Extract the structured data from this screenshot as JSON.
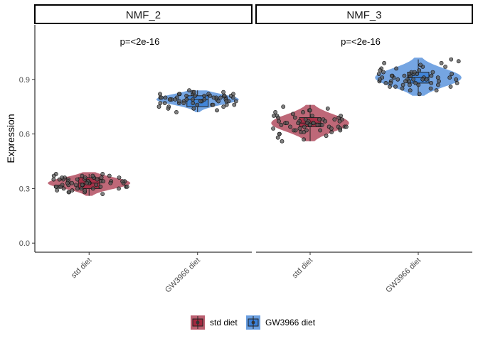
{
  "chart_data": {
    "type": "violin",
    "ylabel": "Expression",
    "ylim": [
      -0.05,
      1.2
    ],
    "yticks": [
      0.0,
      0.3,
      0.6,
      0.9
    ],
    "ytick_labels": [
      "0.0",
      "0.3",
      "0.6",
      "0.9"
    ],
    "categories": [
      "std diet",
      "GW3966 diet"
    ],
    "legend": {
      "position": "bottom",
      "entries": [
        "std diet",
        "GW3966 diet"
      ]
    },
    "colors": {
      "std diet": "#a3283f",
      "GW3966 diet": "#3a7fd6"
    },
    "facets": [
      {
        "name": "NMF_2",
        "pvalue": "p=<2e-16",
        "groups": [
          {
            "name": "std diet",
            "median": 0.33,
            "q1": 0.3,
            "q3": 0.36,
            "min": 0.26,
            "max": 0.38,
            "vmin": 0.26,
            "vmax": 0.39,
            "vwidth": 0.38,
            "points": [
              0.34,
              0.36,
              0.31,
              0.28,
              0.35,
              0.33,
              0.38,
              0.3,
              0.32,
              0.37,
              0.29,
              0.34,
              0.36,
              0.31,
              0.33,
              0.35,
              0.27,
              0.32,
              0.36,
              0.34,
              0.3,
              0.37,
              0.33,
              0.31,
              0.35,
              0.28,
              0.34,
              0.36,
              0.32,
              0.3,
              0.38,
              0.33,
              0.35,
              0.31,
              0.29,
              0.34,
              0.37,
              0.32,
              0.36,
              0.33,
              0.3,
              0.35,
              0.31,
              0.34,
              0.28,
              0.36,
              0.33,
              0.32,
              0.35,
              0.3,
              0.37,
              0.34,
              0.31,
              0.33,
              0.36,
              0.29,
              0.35,
              0.32,
              0.34,
              0.31
            ]
          },
          {
            "name": "GW3966 diet",
            "median": 0.79,
            "q1": 0.75,
            "q3": 0.81,
            "min": 0.72,
            "max": 0.84,
            "vmin": 0.72,
            "vmax": 0.84,
            "vwidth": 0.38,
            "points": [
              0.8,
              0.78,
              0.82,
              0.76,
              0.79,
              0.81,
              0.74,
              0.83,
              0.77,
              0.8,
              0.79,
              0.75,
              0.82,
              0.78,
              0.8,
              0.76,
              0.81,
              0.79,
              0.73,
              0.82,
              0.78,
              0.8,
              0.77,
              0.81,
              0.79,
              0.84,
              0.76,
              0.8,
              0.78,
              0.82,
              0.75,
              0.79,
              0.81,
              0.77,
              0.8,
              0.78,
              0.83,
              0.76,
              0.79,
              0.81,
              0.74,
              0.8,
              0.78,
              0.82,
              0.77,
              0.79,
              0.8,
              0.76,
              0.81,
              0.78,
              0.72,
              0.83,
              0.79,
              0.8,
              0.77,
              0.82,
              0.78,
              0.75,
              0.81,
              0.79
            ]
          }
        ]
      },
      {
        "name": "NMF_3",
        "pvalue": "p=<2e-16",
        "groups": [
          {
            "name": "std diet",
            "median": 0.66,
            "q1": 0.64,
            "q3": 0.69,
            "min": 0.56,
            "max": 0.76,
            "vmin": 0.56,
            "vmax": 0.76,
            "vwidth": 0.36,
            "points": [
              0.65,
              0.7,
              0.62,
              0.73,
              0.58,
              0.67,
              0.64,
              0.69,
              0.61,
              0.75,
              0.66,
              0.63,
              0.68,
              0.6,
              0.72,
              0.65,
              0.67,
              0.57,
              0.7,
              0.64,
              0.62,
              0.74,
              0.66,
              0.68,
              0.59,
              0.65,
              0.71,
              0.63,
              0.67,
              0.64,
              0.6,
              0.69,
              0.66,
              0.62,
              0.72,
              0.65,
              0.68,
              0.61,
              0.66,
              0.63,
              0.7,
              0.64,
              0.56,
              0.67,
              0.65,
              0.73,
              0.62,
              0.68,
              0.66,
              0.64,
              0.69,
              0.61,
              0.65,
              0.67,
              0.63,
              0.7,
              0.66,
              0.64,
              0.62,
              0.68
            ]
          },
          {
            "name": "GW3966 diet",
            "median": 0.91,
            "q1": 0.88,
            "q3": 0.94,
            "min": 0.81,
            "max": 1.01,
            "vmin": 0.81,
            "vmax": 1.02,
            "vwidth": 0.4,
            "points": [
              0.9,
              0.94,
              0.88,
              0.97,
              0.85,
              0.92,
              0.89,
              0.99,
              0.87,
              0.93,
              0.91,
              0.84,
              0.96,
              0.9,
              0.88,
              1.0,
              0.92,
              0.86,
              0.94,
              0.89,
              0.91,
              0.98,
              0.87,
              0.93,
              0.9,
              0.82,
              0.95,
              0.89,
              0.92,
              0.88,
              0.96,
              0.91,
              0.85,
              0.93,
              0.9,
              0.87,
              0.97,
              0.92,
              0.89,
              0.94,
              0.86,
              0.91,
              0.99,
              0.88,
              0.93,
              0.9,
              0.84,
              0.95,
              0.92,
              0.89,
              0.91,
              0.87,
              0.94,
              0.9,
              1.01,
              0.88,
              0.92,
              0.86,
              0.93,
              0.9
            ]
          }
        ]
      }
    ]
  }
}
